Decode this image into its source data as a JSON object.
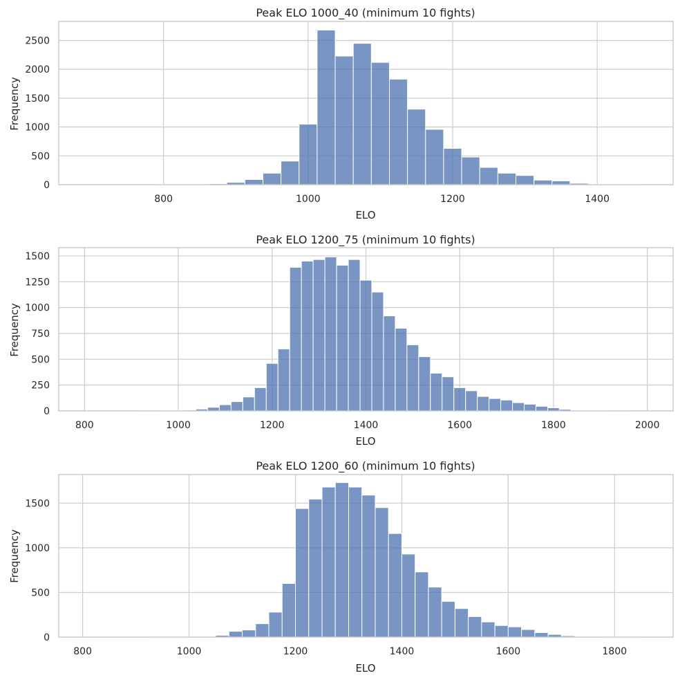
{
  "colors": {
    "bar": "#4c72b0",
    "grid": "#cccccc",
    "background": "#ffffff",
    "text": "#262626"
  },
  "chart_data": [
    {
      "type": "bar",
      "title": "Peak ELO 1000_40 (minimum 10 fights)",
      "xlabel": "ELO",
      "ylabel": "Frequency",
      "xlim": [
        655,
        1505
      ],
      "ylim": [
        0,
        2830
      ],
      "xticks": [
        800,
        1000,
        1200,
        1400
      ],
      "yticks": [
        0,
        500,
        1000,
        1500,
        2000,
        2500
      ],
      "grid": true,
      "bin_width": 25,
      "x": [
        675,
        700,
        725,
        750,
        775,
        800,
        825,
        850,
        875,
        900,
        925,
        950,
        975,
        1000,
        1025,
        1050,
        1075,
        1100,
        1125,
        1150,
        1175,
        1200,
        1225,
        1250,
        1275,
        1300,
        1325,
        1350,
        1375,
        1400,
        1425,
        1450,
        1475
      ],
      "values": [
        0,
        0,
        0,
        0,
        2,
        3,
        5,
        8,
        18,
        40,
        90,
        200,
        410,
        1050,
        2680,
        2230,
        2450,
        2120,
        1830,
        1310,
        960,
        630,
        480,
        300,
        200,
        160,
        80,
        65,
        25,
        8,
        5,
        3,
        2
      ]
    },
    {
      "type": "bar",
      "title": "Peak ELO 1200_75 (minimum 10 fights)",
      "xlabel": "ELO",
      "ylabel": "Frequency",
      "xlim": [
        745,
        2055
      ],
      "ylim": [
        0,
        1580
      ],
      "xticks": [
        800,
        1000,
        1200,
        1400,
        1600,
        1800,
        2000
      ],
      "yticks": [
        0,
        250,
        500,
        750,
        1000,
        1250,
        1500
      ],
      "grid": true,
      "bin_width": 25,
      "x": [
        775,
        800,
        825,
        850,
        875,
        900,
        925,
        950,
        975,
        1000,
        1025,
        1050,
        1075,
        1100,
        1125,
        1150,
        1175,
        1200,
        1225,
        1250,
        1275,
        1300,
        1325,
        1350,
        1375,
        1400,
        1425,
        1450,
        1475,
        1500,
        1525,
        1550,
        1575,
        1600,
        1625,
        1650,
        1675,
        1700,
        1725,
        1750,
        1775,
        1800,
        1825,
        1850,
        1875,
        1900,
        1925,
        1950,
        1975,
        2000,
        2025
      ],
      "values": [
        0,
        0,
        0,
        0,
        0,
        0,
        1,
        1,
        2,
        4,
        8,
        18,
        35,
        60,
        90,
        135,
        225,
        460,
        600,
        1390,
        1450,
        1465,
        1490,
        1410,
        1465,
        1265,
        1150,
        920,
        800,
        640,
        525,
        365,
        330,
        225,
        195,
        140,
        120,
        105,
        80,
        65,
        45,
        30,
        15,
        5,
        3,
        2,
        1,
        1,
        0,
        0,
        0
      ]
    },
    {
      "type": "bar",
      "title": "Peak ELO 1200_60 (minimum 10 fights)",
      "xlabel": "ELO",
      "ylabel": "Frequency",
      "xlim": [
        755,
        1910
      ],
      "ylim": [
        0,
        1820
      ],
      "xticks": [
        800,
        1000,
        1200,
        1400,
        1600,
        1800
      ],
      "yticks": [
        0,
        500,
        1000,
        1500
      ],
      "grid": true,
      "bin_width": 25,
      "x": [
        787.5,
        812.5,
        837.5,
        862.5,
        887.5,
        912.5,
        937.5,
        962.5,
        987.5,
        1012.5,
        1037.5,
        1062.5,
        1087.5,
        1112.5,
        1137.5,
        1162.5,
        1187.5,
        1212.5,
        1237.5,
        1262.5,
        1287.5,
        1312.5,
        1337.5,
        1362.5,
        1387.5,
        1412.5,
        1437.5,
        1462.5,
        1487.5,
        1512.5,
        1537.5,
        1562.5,
        1587.5,
        1612.5,
        1637.5,
        1662.5,
        1687.5,
        1712.5,
        1737.5,
        1762.5,
        1787.5,
        1812.5,
        1837.5,
        1862.5,
        1887.5
      ],
      "values": [
        0,
        0,
        0,
        0,
        0,
        0,
        1,
        1,
        2,
        4,
        8,
        20,
        65,
        80,
        150,
        280,
        600,
        1440,
        1545,
        1680,
        1730,
        1680,
        1590,
        1450,
        1160,
        930,
        730,
        560,
        400,
        320,
        230,
        170,
        130,
        115,
        85,
        50,
        30,
        15,
        5,
        3,
        2,
        1,
        1,
        0,
        0
      ]
    }
  ]
}
